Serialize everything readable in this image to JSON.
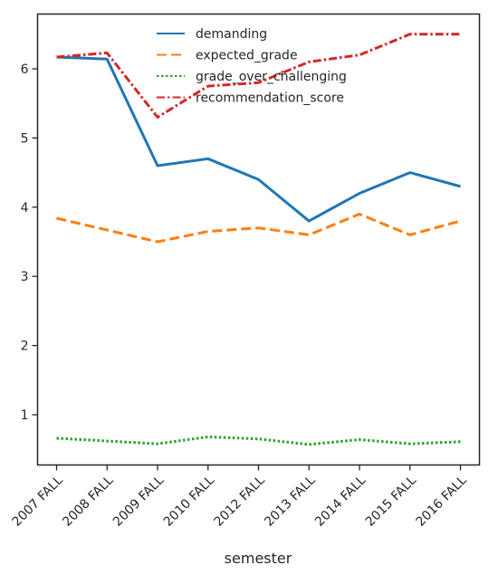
{
  "chart_data": {
    "type": "line",
    "xlabel": "semester",
    "ylabel": "",
    "categories": [
      "2007 FALL",
      "2008 FALL",
      "2009 FALL",
      "2010 FALL",
      "2012 FALL",
      "2013 FALL",
      "2014 FALL",
      "2015 FALL",
      "2016 FALL"
    ],
    "yticks": [
      1,
      2,
      3,
      4,
      5,
      6
    ],
    "ylim": [
      0.25,
      6.8
    ],
    "grid": false,
    "legend_position": "top-center",
    "series": [
      {
        "name": "demanding",
        "color": "#1f77b4",
        "dash": "solid",
        "values": [
          6.17,
          6.14,
          4.6,
          4.7,
          4.4,
          3.8,
          4.2,
          4.5,
          4.3
        ]
      },
      {
        "name": "expected_grade",
        "color": "#ff7f0e",
        "dash": "dashed",
        "values": [
          3.84,
          3.67,
          3.5,
          3.65,
          3.7,
          3.6,
          3.9,
          3.6,
          3.8
        ]
      },
      {
        "name": "grade_over_challenging",
        "color": "#2ca02c",
        "dash": "dotted",
        "values": [
          0.66,
          0.62,
          0.58,
          0.68,
          0.65,
          0.57,
          0.64,
          0.58,
          0.61
        ]
      },
      {
        "name": "recommendation_score",
        "color": "#d62728",
        "dash": "dashdot",
        "values": [
          6.17,
          6.23,
          5.3,
          5.75,
          5.8,
          6.1,
          6.2,
          6.5,
          6.5
        ]
      }
    ]
  }
}
